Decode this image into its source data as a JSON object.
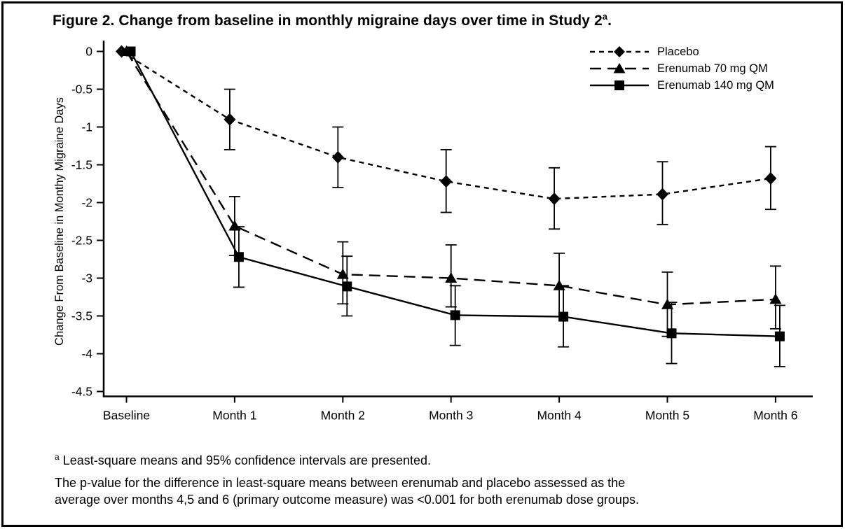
{
  "figure": {
    "title_prefix": "Figure 2. Change from baseline in monthly migraine days over time in Study 2",
    "title_sup": "a",
    "title_suffix": "."
  },
  "footnote": {
    "sup": "a",
    "line1": " Least-square means and 95% confidence intervals are presented.",
    "line2": "The p-value for the difference in least-square means between erenumab and placebo assessed as the",
    "line3": "average over months 4,5 and 6 (primary outcome measure) was <0.001 for both erenumab dose groups."
  },
  "colors": {
    "ink": "#000000",
    "background": "#ffffff"
  },
  "chart_data": {
    "type": "line",
    "title": "Figure 2. Change from baseline in monthly migraine days over time in Study 2",
    "xlabel": "",
    "ylabel": "Change From Baseline in Monthy Migraine Days",
    "categories": [
      "Baseline",
      "Month 1",
      "Month 2",
      "Month 3",
      "Month 4",
      "Month 5",
      "Month 6"
    ],
    "yticks": [
      0,
      -0.5,
      -1,
      -1.5,
      -2,
      -2.5,
      -3,
      -3.5,
      -4,
      -4.5
    ],
    "ylim": [
      -4.5,
      0
    ],
    "grid": false,
    "legend_position": "top-right",
    "error_bars": "95% CI",
    "series": [
      {
        "name": "Placebo",
        "marker": "diamond",
        "line_style": "dash",
        "values": [
          0,
          -0.9,
          -1.4,
          -1.72,
          -1.95,
          -1.89,
          -1.68
        ],
        "ci_high": [
          null,
          -0.5,
          -1.0,
          -1.3,
          -1.54,
          -1.46,
          -1.26
        ],
        "ci_low": [
          null,
          -1.3,
          -1.8,
          -2.13,
          -2.35,
          -2.29,
          -2.09
        ]
      },
      {
        "name": "Erenumab 70 mg QM",
        "marker": "triangle",
        "line_style": "long-dash",
        "values": [
          0,
          -2.31,
          -2.95,
          -3.0,
          -3.1,
          -3.35,
          -3.28
        ],
        "ci_high": [
          null,
          -1.92,
          -2.52,
          -2.56,
          -2.67,
          -2.92,
          -2.84
        ],
        "ci_low": [
          null,
          -2.7,
          -3.34,
          -3.38,
          -3.51,
          -3.77,
          -3.67
        ]
      },
      {
        "name": "Erenumab 140 mg QM",
        "marker": "square",
        "line_style": "solid",
        "values": [
          0,
          -2.72,
          -3.11,
          -3.49,
          -3.51,
          -3.73,
          -3.77
        ],
        "ci_high": [
          null,
          -2.32,
          -2.71,
          -3.1,
          -3.1,
          -3.32,
          -3.36
        ],
        "ci_low": [
          null,
          -3.12,
          -3.5,
          -3.89,
          -3.91,
          -4.13,
          -4.17
        ]
      }
    ]
  }
}
